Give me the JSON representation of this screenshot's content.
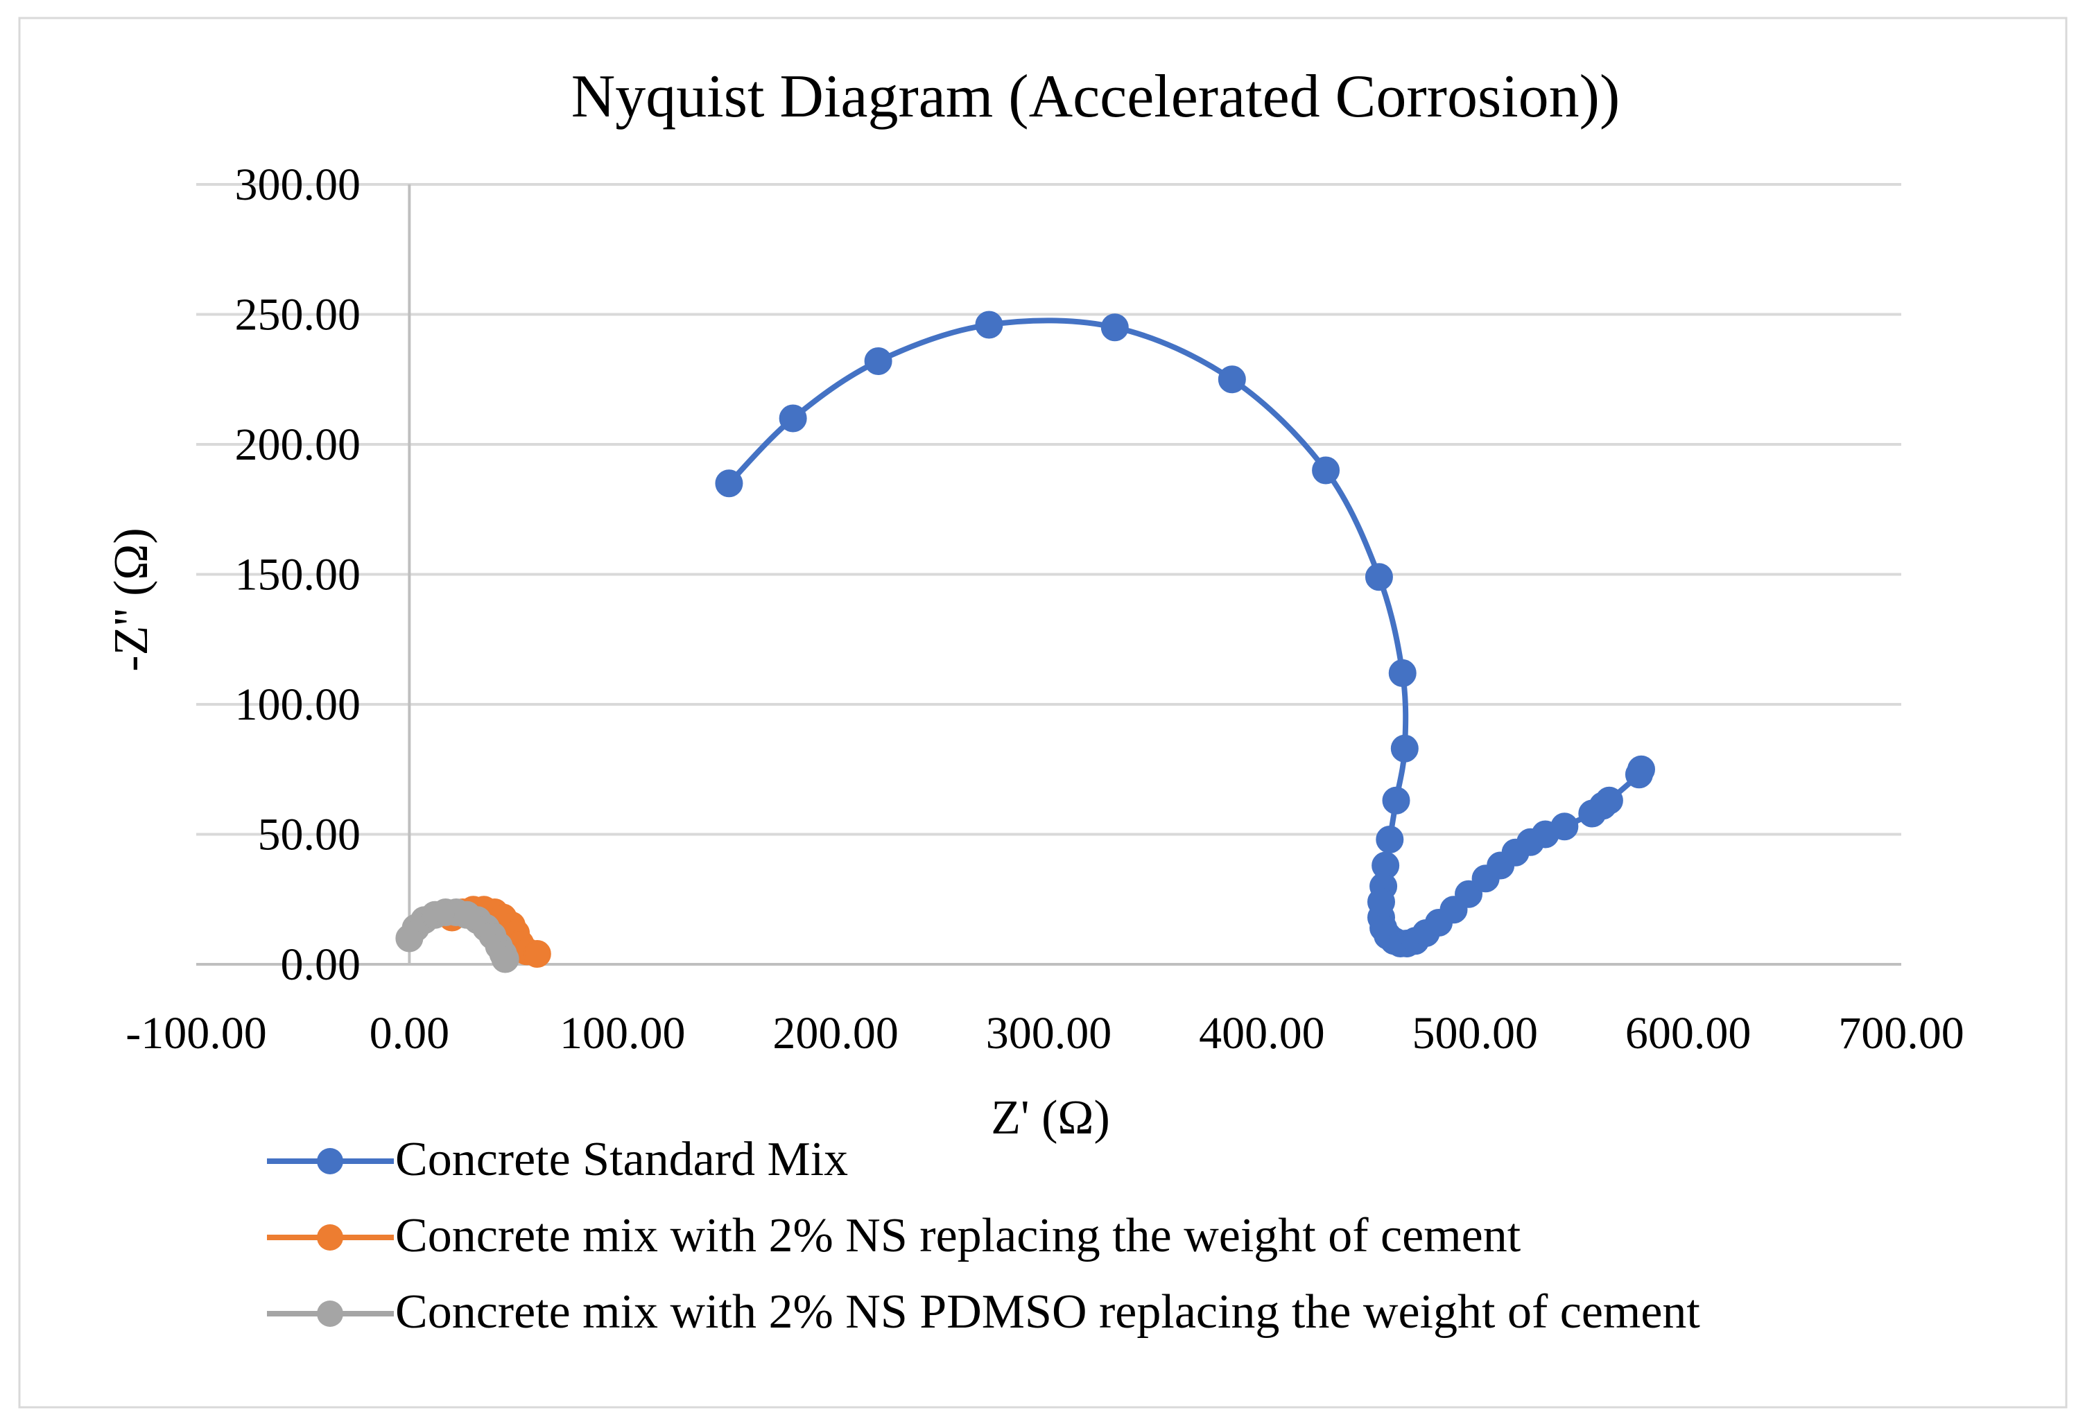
{
  "chart_data": {
    "type": "scatter",
    "title": "Nyquist Diagram (Accelerated Corrosion))",
    "xlabel": "Z' (Ω)",
    "ylabel": "-Z'' (Ω)",
    "xlim": [
      -100,
      700
    ],
    "ylim": [
      0,
      300
    ],
    "x_ticks": [
      "-100.00",
      "0.00",
      "100.00",
      "200.00",
      "300.00",
      "400.00",
      "500.00",
      "600.00",
      "700.00"
    ],
    "y_ticks": [
      "0.00",
      "50.00",
      "100.00",
      "150.00",
      "200.00",
      "250.00",
      "300.00"
    ],
    "grid": true,
    "legend_position": "bottom",
    "series": [
      {
        "name": "Concrete Standard Mix",
        "color": "#4472C4",
        "x": [
          150,
          180,
          220,
          272,
          331,
          386,
          430,
          455,
          466,
          467,
          463,
          460,
          458,
          457,
          456,
          456,
          457,
          459,
          462,
          465,
          468,
          472,
          477,
          483,
          490,
          497,
          505,
          512,
          519,
          526,
          533,
          542,
          555,
          560,
          563,
          577,
          578
        ],
        "y": [
          185,
          210,
          232,
          246,
          245,
          225,
          190,
          149,
          112,
          83,
          63,
          48,
          38,
          30,
          24,
          18,
          14,
          11,
          9,
          8,
          8,
          9,
          12,
          16,
          21,
          27,
          33,
          38,
          43,
          47,
          50,
          53,
          58,
          61,
          63,
          73,
          75
        ]
      },
      {
        "name": "Concrete mix with 2% NS replacing the weight of cement",
        "color": "#ED7D31",
        "x": [
          20,
          25,
          30,
          35,
          40,
          44,
          48,
          50,
          52,
          55,
          60
        ],
        "y": [
          18,
          20,
          21,
          21,
          20,
          18,
          15,
          12,
          8,
          5,
          4
        ]
      },
      {
        "name": "Concrete mix with 2% NS PDMSO replacing the weight of cement",
        "color": "#A5A5A5",
        "x": [
          0,
          3,
          7,
          12,
          17,
          22,
          27,
          32,
          36,
          39,
          42,
          44,
          45
        ],
        "y": [
          10,
          14,
          17,
          19,
          20,
          20,
          19,
          17,
          14,
          11,
          7,
          4,
          2
        ]
      }
    ]
  }
}
